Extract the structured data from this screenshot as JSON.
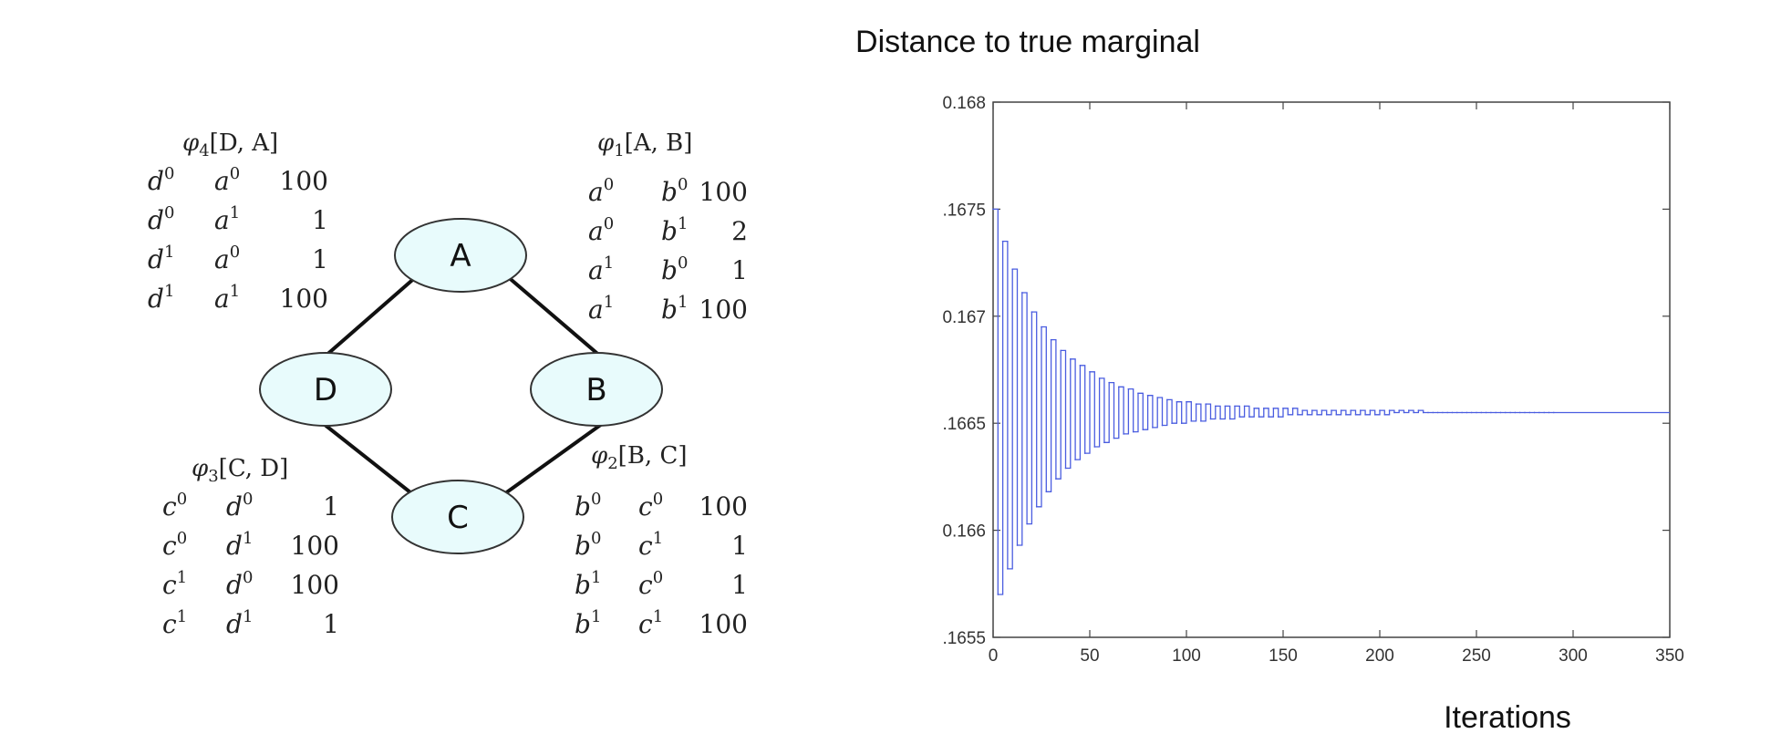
{
  "diagram": {
    "nodes": [
      {
        "id": "A",
        "label": "A"
      },
      {
        "id": "B",
        "label": "B"
      },
      {
        "id": "C",
        "label": "C"
      },
      {
        "id": "D",
        "label": "D"
      }
    ],
    "edges": [
      [
        "A",
        "B"
      ],
      [
        "B",
        "C"
      ],
      [
        "C",
        "D"
      ],
      [
        "D",
        "A"
      ]
    ],
    "factors": [
      {
        "key": "phi4",
        "sym": "φ",
        "sub": "4",
        "args": "[D, A]",
        "rows": [
          [
            "d",
            "0",
            "a",
            "0",
            "100"
          ],
          [
            "d",
            "0",
            "a",
            "1",
            "1"
          ],
          [
            "d",
            "1",
            "a",
            "0",
            "1"
          ],
          [
            "d",
            "1",
            "a",
            "1",
            "100"
          ]
        ]
      },
      {
        "key": "phi1",
        "sym": "φ",
        "sub": "1",
        "args": "[A, B]",
        "rows": [
          [
            "a",
            "0",
            "b",
            "0",
            "100"
          ],
          [
            "a",
            "0",
            "b",
            "1",
            "2"
          ],
          [
            "a",
            "1",
            "b",
            "0",
            "1"
          ],
          [
            "a",
            "1",
            "b",
            "1",
            "100"
          ]
        ]
      },
      {
        "key": "phi3",
        "sym": "φ",
        "sub": "3",
        "args": "[C, D]",
        "rows": [
          [
            "c",
            "0",
            "d",
            "0",
            "1"
          ],
          [
            "c",
            "0",
            "d",
            "1",
            "100"
          ],
          [
            "c",
            "1",
            "d",
            "0",
            "100"
          ],
          [
            "c",
            "1",
            "d",
            "1",
            "1"
          ]
        ]
      },
      {
        "key": "phi2",
        "sym": "φ",
        "sub": "2",
        "args": "[B, C]",
        "rows": [
          [
            "b",
            "0",
            "c",
            "0",
            "100"
          ],
          [
            "b",
            "0",
            "c",
            "1",
            "1"
          ],
          [
            "b",
            "1",
            "c",
            "0",
            "1"
          ],
          [
            "b",
            "1",
            "c",
            "1",
            "100"
          ]
        ]
      }
    ]
  },
  "chart_data": {
    "type": "line",
    "title": "Distance to true marginal",
    "xlabel": "Iterations",
    "ylabel": "",
    "xlim": [
      0,
      350
    ],
    "ylim": [
      0.1655,
      0.168
    ],
    "xticks": [
      "0",
      "50",
      "100",
      "150",
      "200",
      "250",
      "300",
      "350"
    ],
    "yticks": [
      ".1655",
      "0.166",
      ".1665",
      "0.167",
      ".1675",
      "0.168"
    ],
    "grid": false,
    "line_color": "#4a5de0",
    "step": true,
    "converged_value": 0.16655,
    "peaks": [
      [
        0,
        0.1675
      ],
      [
        5,
        0.16735
      ],
      [
        10,
        0.16722
      ],
      [
        15,
        0.16711
      ],
      [
        20,
        0.16702
      ],
      [
        25,
        0.16695
      ],
      [
        30,
        0.16689
      ],
      [
        35,
        0.16684
      ],
      [
        40,
        0.1668
      ],
      [
        45,
        0.16677
      ],
      [
        50,
        0.16674
      ],
      [
        55,
        0.16671
      ],
      [
        60,
        0.16669
      ],
      [
        65,
        0.16667
      ],
      [
        70,
        0.16666
      ],
      [
        75,
        0.16664
      ],
      [
        80,
        0.16663
      ],
      [
        85,
        0.16662
      ],
      [
        90,
        0.16661
      ],
      [
        95,
        0.1666
      ],
      [
        100,
        0.1666
      ],
      [
        105,
        0.16659
      ],
      [
        110,
        0.16659
      ],
      [
        115,
        0.16658
      ],
      [
        120,
        0.16658
      ],
      [
        125,
        0.16658
      ],
      [
        130,
        0.16658
      ],
      [
        135,
        0.16657
      ],
      [
        140,
        0.16657
      ],
      [
        145,
        0.16657
      ],
      [
        150,
        0.16657
      ],
      [
        155,
        0.16657
      ],
      [
        160,
        0.16656
      ],
      [
        165,
        0.16656
      ],
      [
        170,
        0.16656
      ],
      [
        175,
        0.16656
      ],
      [
        180,
        0.16656
      ],
      [
        185,
        0.16656
      ],
      [
        190,
        0.16656
      ],
      [
        195,
        0.16656
      ],
      [
        200,
        0.16656
      ],
      [
        205,
        0.16656
      ],
      [
        210,
        0.16656
      ],
      [
        215,
        0.16656
      ],
      [
        220,
        0.16656
      ],
      [
        225,
        0.16655
      ],
      [
        230,
        0.16655
      ],
      [
        235,
        0.16655
      ],
      [
        240,
        0.16655
      ],
      [
        245,
        0.16655
      ],
      [
        250,
        0.16655
      ],
      [
        255,
        0.16655
      ],
      [
        260,
        0.16655
      ],
      [
        265,
        0.16655
      ],
      [
        270,
        0.16655
      ],
      [
        275,
        0.16655
      ],
      [
        280,
        0.16655
      ],
      [
        285,
        0.16655
      ],
      [
        290,
        0.16655
      ]
    ],
    "troughs": [
      [
        2.5,
        0.1657
      ],
      [
        7.5,
        0.16582
      ],
      [
        12.5,
        0.16593
      ],
      [
        17.5,
        0.16603
      ],
      [
        22.5,
        0.16611
      ],
      [
        27.5,
        0.16618
      ],
      [
        32.5,
        0.16624
      ],
      [
        37.5,
        0.16629
      ],
      [
        42.5,
        0.16633
      ],
      [
        47.5,
        0.16636
      ],
      [
        52.5,
        0.16639
      ],
      [
        57.5,
        0.16641
      ],
      [
        62.5,
        0.16643
      ],
      [
        67.5,
        0.16645
      ],
      [
        72.5,
        0.16646
      ],
      [
        77.5,
        0.16647
      ],
      [
        82.5,
        0.16648
      ],
      [
        87.5,
        0.16649
      ],
      [
        92.5,
        0.1665
      ],
      [
        97.5,
        0.1665
      ],
      [
        102.5,
        0.16651
      ],
      [
        107.5,
        0.16651
      ],
      [
        112.5,
        0.16652
      ],
      [
        117.5,
        0.16652
      ],
      [
        122.5,
        0.16652
      ],
      [
        127.5,
        0.16653
      ],
      [
        132.5,
        0.16653
      ],
      [
        137.5,
        0.16653
      ],
      [
        142.5,
        0.16653
      ],
      [
        147.5,
        0.16653
      ],
      [
        152.5,
        0.16654
      ],
      [
        157.5,
        0.16654
      ],
      [
        162.5,
        0.16654
      ],
      [
        167.5,
        0.16654
      ],
      [
        172.5,
        0.16654
      ],
      [
        177.5,
        0.16654
      ],
      [
        182.5,
        0.16654
      ],
      [
        187.5,
        0.16654
      ],
      [
        192.5,
        0.16654
      ],
      [
        197.5,
        0.16654
      ],
      [
        202.5,
        0.16654
      ],
      [
        207.5,
        0.16655
      ],
      [
        212.5,
        0.16655
      ],
      [
        217.5,
        0.16655
      ],
      [
        222.5,
        0.16655
      ],
      [
        227.5,
        0.16655
      ],
      [
        232.5,
        0.16655
      ],
      [
        237.5,
        0.16655
      ],
      [
        242.5,
        0.16655
      ],
      [
        247.5,
        0.16655
      ],
      [
        252.5,
        0.16655
      ],
      [
        257.5,
        0.16655
      ],
      [
        262.5,
        0.16655
      ],
      [
        267.5,
        0.16655
      ],
      [
        272.5,
        0.16655
      ],
      [
        277.5,
        0.16655
      ],
      [
        282.5,
        0.16655
      ],
      [
        287.5,
        0.16655
      ]
    ],
    "series": [
      {
        "values_end_x": 350
      }
    ]
  }
}
